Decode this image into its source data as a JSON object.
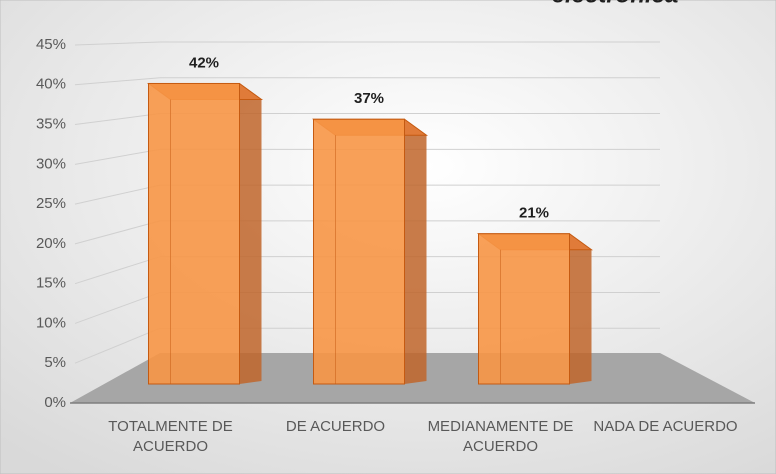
{
  "chart_data": {
    "type": "bar3d",
    "title": "electrónica",
    "categories": [
      "TOTALMENTE DE ACUERDO",
      "DE ACUERDO",
      "MEDIANAMENTE DE ACUERDO",
      "NADA DE ACUERDO"
    ],
    "values": [
      42,
      37,
      21,
      0
    ],
    "value_labels": [
      "42%",
      "37%",
      "21%",
      null
    ],
    "color": "#f79646",
    "ylim": [
      0,
      45
    ],
    "yticks": [
      {
        "value": 0,
        "label": "0%"
      },
      {
        "value": 5,
        "label": "5%"
      },
      {
        "value": 10,
        "label": "10%"
      },
      {
        "value": 15,
        "label": "15%"
      },
      {
        "value": 20,
        "label": "20%"
      },
      {
        "value": 25,
        "label": "25%"
      },
      {
        "value": 30,
        "label": "30%"
      },
      {
        "value": 35,
        "label": "35%"
      },
      {
        "value": 40,
        "label": "40%"
      },
      {
        "value": 45,
        "label": "45%"
      }
    ],
    "grid": true
  }
}
